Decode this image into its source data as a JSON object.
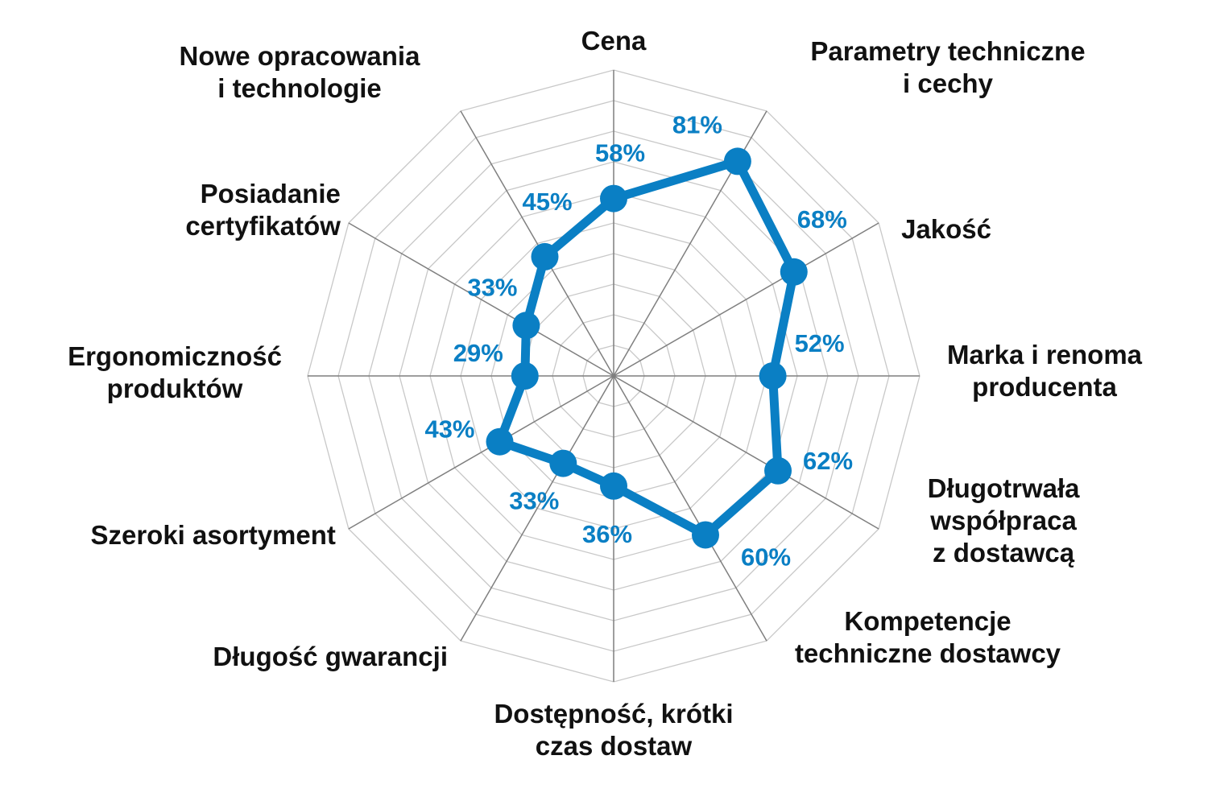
{
  "chart_data": {
    "type": "radar",
    "rlim": [
      0,
      100
    ],
    "gridlines": 10,
    "grid": true,
    "series_color": "#0a7fc4",
    "grid_color": "#c8c8c8",
    "spoke_color": "#7f7f7f",
    "categories": [
      [
        "Cena"
      ],
      [
        "Parametry techniczne",
        "i cechy"
      ],
      [
        "Jakość"
      ],
      [
        "Marka i renoma",
        "producenta"
      ],
      [
        "Długotrwała",
        "współpraca",
        "z dostawcą"
      ],
      [
        "Kompetencje",
        "techniczne dostawcy"
      ],
      [
        "Dostępność, krótki",
        "czas dostaw"
      ],
      [
        "Długość gwarancji"
      ],
      [
        "Szeroki asortyment"
      ],
      [
        "Ergonomiczność",
        "produktów"
      ],
      [
        "Posiadanie",
        "certyfikatów"
      ],
      [
        "Nowe opracowania",
        "i technologie"
      ]
    ],
    "series": [
      {
        "values": [
          58,
          81,
          68,
          52,
          62,
          60,
          36,
          33,
          43,
          29,
          33,
          45
        ],
        "labels": [
          "58%",
          "81%",
          "68%",
          "52%",
          "62%",
          "60%",
          "36%",
          "33%",
          "43%",
          "29%",
          "33%",
          "45%"
        ]
      }
    ]
  }
}
